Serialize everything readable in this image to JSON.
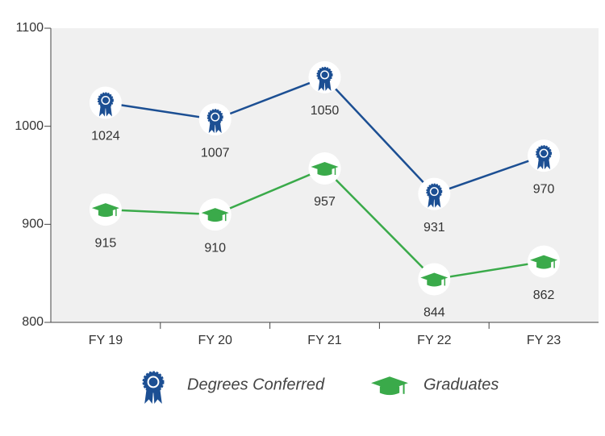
{
  "chart_data": {
    "type": "line",
    "categories": [
      "FY 19",
      "FY 20",
      "FY 21",
      "FY 22",
      "FY 23"
    ],
    "series": [
      {
        "name": "Degrees Conferred",
        "color": "#1c4f93",
        "values": [
          1024,
          1007,
          1050,
          931,
          970
        ]
      },
      {
        "name": "Graduates",
        "color": "#3aaa4a",
        "values": [
          915,
          910,
          957,
          844,
          862
        ]
      }
    ],
    "ylim": [
      800,
      1100
    ],
    "yticks": [
      800,
      900,
      1000,
      1100
    ]
  }
}
